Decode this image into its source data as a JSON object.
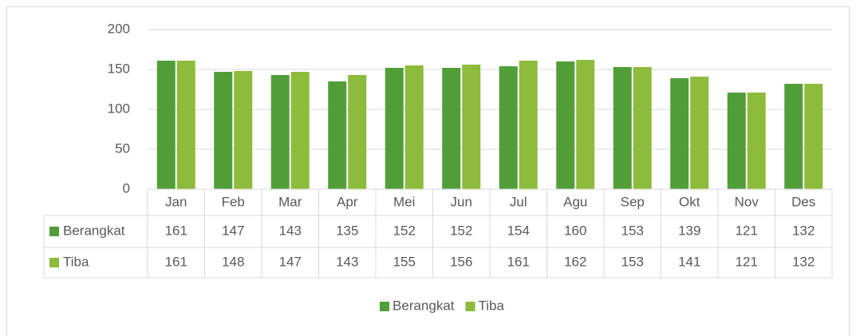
{
  "chart_data": {
    "type": "bar",
    "categories": [
      "Jan",
      "Feb",
      "Mar",
      "Apr",
      "Mei",
      "Jun",
      "Jul",
      "Agu",
      "Sep",
      "Okt",
      "Nov",
      "Des"
    ],
    "series": [
      {
        "name": "Berangkat",
        "color": "#519e39",
        "values": [
          161,
          147,
          143,
          135,
          152,
          152,
          154,
          160,
          153,
          139,
          121,
          132
        ]
      },
      {
        "name": "Tiba",
        "color": "#8dbb3c",
        "values": [
          161,
          148,
          147,
          143,
          155,
          156,
          161,
          162,
          153,
          141,
          121,
          132
        ]
      }
    ],
    "ylim": [
      0,
      200
    ],
    "yticks": [
      0,
      50,
      100,
      150,
      200
    ],
    "grid": true,
    "data_table": true,
    "legend": "bottom"
  }
}
